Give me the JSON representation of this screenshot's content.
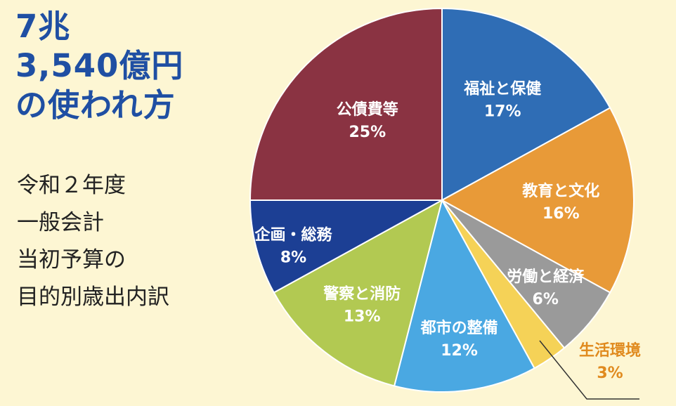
{
  "headline": {
    "line1": "7兆",
    "line2": "3,540億円",
    "line3": "の使われ方"
  },
  "subtitle": {
    "lines": [
      "令和２年度",
      "一般会計",
      "当初予算の",
      "目的別歳出内訳"
    ]
  },
  "chart_data": {
    "type": "pie",
    "slices": [
      {
        "label": "福祉と保健",
        "value": 17,
        "value_label": "17%",
        "color": "#2f6db5"
      },
      {
        "label": "教育と文化",
        "value": 16,
        "value_label": "16%",
        "color": "#e89a38"
      },
      {
        "label": "労働と経済",
        "value": 6,
        "value_label": "6%",
        "color": "#9a9a9a"
      },
      {
        "label": "生活環境",
        "value": 3,
        "value_label": "3%",
        "color": "#f5d257"
      },
      {
        "label": "都市の整備",
        "value": 12,
        "value_label": "12%",
        "color": "#4aa8e2"
      },
      {
        "label": "警察と消防",
        "value": 13,
        "value_label": "13%",
        "color": "#b2c952"
      },
      {
        "label": "企画・総務",
        "value": 8,
        "value_label": "8%",
        "color": "#1c3f94"
      },
      {
        "label": "公債費等",
        "value": 25,
        "value_label": "25%",
        "color": "#8a3342"
      }
    ]
  }
}
